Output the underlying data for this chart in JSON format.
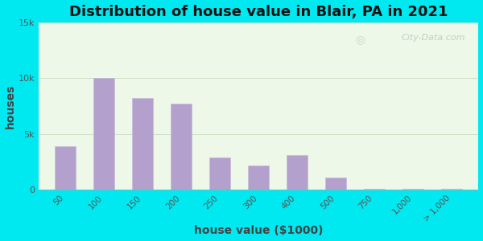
{
  "title": "Distribution of house value in Blair, PA in 2021",
  "xlabel": "house value ($1000)",
  "ylabel": "houses",
  "bar_categories": [
    "50",
    "100",
    "150",
    "200",
    "250",
    "300",
    "400",
    "500",
    "750",
    "1,000",
    "> 1,000"
  ],
  "bar_values": [
    3900,
    10000,
    8200,
    7700,
    2900,
    2200,
    3100,
    1100,
    80,
    80,
    80
  ],
  "bar_color": "#b3a0cc",
  "bar_edge_color": "#c8b8dc",
  "ylim": [
    0,
    15000
  ],
  "yticks": [
    0,
    5000,
    10000,
    15000
  ],
  "ytick_labels": [
    "0",
    "5k",
    "10k",
    "15k"
  ],
  "bg_outer": "#00e8f0",
  "bg_inner": "#edf8e8",
  "title_fontsize": 13,
  "axis_label_fontsize": 10,
  "watermark": "City-Data.com",
  "grid_color": "#c8dcc0"
}
